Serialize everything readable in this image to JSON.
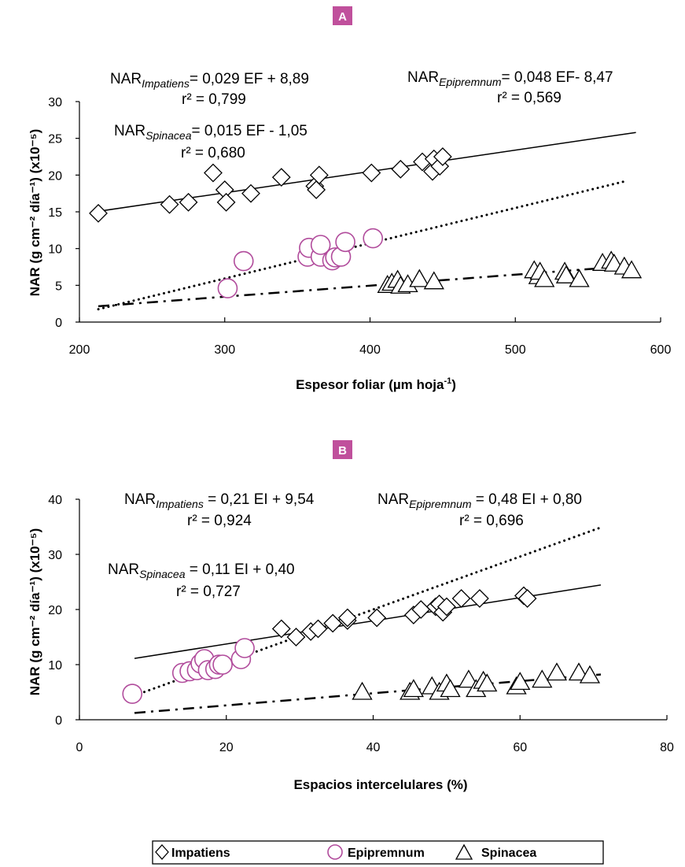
{
  "colors": {
    "panel_badge": "#C0509C",
    "epipremnum": "#B14C9C",
    "line": "#000000"
  },
  "chart_data": [
    {
      "type": "scatter",
      "panel_label": "A",
      "xlabel_main": "Espesor foliar (µm hoja",
      "xlabel_sup": "-1",
      "xlabel_end": ")",
      "ylabel": "NAR (g cm⁻² día⁻¹) (x10⁻⁵)",
      "xlim": [
        200,
        600
      ],
      "ylim": [
        0,
        30
      ],
      "xticks": [
        "200",
        "300",
        "400",
        "500",
        "600"
      ],
      "yticks": [
        "0",
        "5",
        "10",
        "15",
        "20",
        "25",
        "30"
      ],
      "equations": [
        {
          "name": "NAR",
          "sub": "Impatiens",
          "expr": "= 0,029 EF + 8,89",
          "r2": "r² = 0,799"
        },
        {
          "name": "NAR",
          "sub": "Epipremnum",
          "expr": "= 0,048 EF- 8,47",
          "r2": "r² = 0,569"
        },
        {
          "name": "NAR",
          "sub": "Spinacea",
          "expr": "= 0,015 EF - 1,05",
          "r2": "r² = 0,680"
        }
      ],
      "series": [
        {
          "name": "Impatiens",
          "marker": "diamond",
          "points": [
            [
              213,
              14.8
            ],
            [
              262,
              16
            ],
            [
              275,
              16.3
            ],
            [
              292,
              20.3
            ],
            [
              300,
              18
            ],
            [
              301,
              16.3
            ],
            [
              318,
              17.5
            ],
            [
              339,
              19.7
            ],
            [
              362,
              18.5
            ],
            [
              363,
              18
            ],
            [
              365,
              20
            ],
            [
              401,
              20.3
            ],
            [
              421,
              20.8
            ],
            [
              436,
              21.8
            ],
            [
              443,
              20.5
            ],
            [
              444,
              22.2
            ],
            [
              448,
              21.2
            ],
            [
              450,
              22.5
            ]
          ],
          "fit": {
            "style": "solid",
            "x": [
              213,
              583
            ],
            "y": [
              15.07,
              25.8
            ]
          }
        },
        {
          "name": "Epipremnum",
          "marker": "circle",
          "points": [
            [
              302,
              4.6
            ],
            [
              313,
              8.3
            ],
            [
              357,
              8.9
            ],
            [
              358,
              10.1
            ],
            [
              366,
              8.9
            ],
            [
              366,
              10.5
            ],
            [
              374,
              8.4
            ],
            [
              376,
              8.8
            ],
            [
              380,
              8.9
            ],
            [
              383,
              10.9
            ],
            [
              402,
              11.4
            ]
          ],
          "fit": {
            "style": "dotted",
            "x": [
              213,
              575
            ],
            "y": [
              1.75,
              19.13
            ]
          }
        },
        {
          "name": "Spinacea",
          "marker": "triangle",
          "points": [
            [
              412,
              5
            ],
            [
              415,
              5.3
            ],
            [
              419,
              5.7
            ],
            [
              421,
              4.9
            ],
            [
              426,
              5.1
            ],
            [
              434,
              5.8
            ],
            [
              444,
              5.5
            ],
            [
              513,
              7
            ],
            [
              516,
              6.2
            ],
            [
              517,
              6.8
            ],
            [
              520,
              5.8
            ],
            [
              534,
              6.8
            ],
            [
              535,
              6.3
            ],
            [
              544,
              5.8
            ],
            [
              560,
              8
            ],
            [
              566,
              8.3
            ],
            [
              568,
              7.9
            ],
            [
              575,
              7.5
            ],
            [
              580,
              7
            ]
          ],
          "fit": {
            "style": "dashdot",
            "x": [
              213,
              578
            ],
            "y": [
              2.15,
              7.62
            ]
          }
        }
      ]
    },
    {
      "type": "scatter",
      "panel_label": "B",
      "xlabel_main": "Espacios intercelulares (%)",
      "xlabel_sup": "",
      "xlabel_end": "",
      "ylabel": "NAR (g cm⁻² día⁻¹) (x10⁻⁵)",
      "xlim": [
        0,
        80
      ],
      "ylim": [
        0,
        40
      ],
      "xticks": [
        "0",
        "20",
        "40",
        "60",
        "80"
      ],
      "yticks": [
        "0",
        "10",
        "20",
        "30",
        "40"
      ],
      "equations": [
        {
          "name": "NAR",
          "sub": "Impatiens",
          "expr": " = 0,21 EI + 9,54",
          "r2": "r² = 0,924"
        },
        {
          "name": "NAR",
          "sub": "Epipremnum",
          "expr": " = 0,48 EI + 0,80",
          "r2": "r² = 0,696"
        },
        {
          "name": "NAR",
          "sub": "Spinacea",
          "expr": " = 0,11 EI + 0,40",
          "r2": "r² = 0,727"
        }
      ],
      "series": [
        {
          "name": "Impatiens",
          "marker": "diamond",
          "points": [
            [
              27.5,
              16.5
            ],
            [
              29.5,
              15
            ],
            [
              31.5,
              16
            ],
            [
              32.5,
              16.5
            ],
            [
              34.5,
              17.5
            ],
            [
              36.5,
              18
            ],
            [
              36.5,
              18.5
            ],
            [
              40.5,
              18.5
            ],
            [
              45.5,
              19
            ],
            [
              46.5,
              20
            ],
            [
              48.5,
              20.5
            ],
            [
              49,
              21
            ],
            [
              49.5,
              19.5
            ],
            [
              50,
              20.5
            ],
            [
              52,
              22
            ],
            [
              54.5,
              22
            ],
            [
              60.5,
              22.5
            ],
            [
              61,
              22
            ]
          ],
          "fit": {
            "style": "solid",
            "x": [
              7.5,
              71
            ],
            "y": [
              11.12,
              24.45
            ]
          }
        },
        {
          "name": "Epipremnum",
          "marker": "circle",
          "points": [
            [
              7.2,
              4.7
            ],
            [
              14,
              8.5
            ],
            [
              15,
              8.8
            ],
            [
              16,
              9
            ],
            [
              16.5,
              10.2
            ],
            [
              17,
              11
            ],
            [
              17.5,
              9
            ],
            [
              18.5,
              9.2
            ],
            [
              19,
              10
            ],
            [
              19.5,
              10
            ],
            [
              22,
              11
            ],
            [
              22.5,
              13
            ]
          ],
          "fit": {
            "style": "dotted",
            "x": [
              7.5,
              71
            ],
            "y": [
              4.4,
              34.88
            ]
          }
        },
        {
          "name": "Spinacea",
          "marker": "triangle",
          "points": [
            [
              38.5,
              5
            ],
            [
              45,
              5
            ],
            [
              45.5,
              5.5
            ],
            [
              48,
              6
            ],
            [
              49,
              5
            ],
            [
              50,
              6.5
            ],
            [
              50.5,
              5.5
            ],
            [
              53,
              7.2
            ],
            [
              54,
              5.5
            ],
            [
              55,
              7
            ],
            [
              55.5,
              6.5
            ],
            [
              59.5,
              6
            ],
            [
              60,
              6.8
            ],
            [
              63,
              7.2
            ],
            [
              65,
              8.5
            ],
            [
              68,
              8.5
            ],
            [
              69.5,
              8
            ]
          ],
          "fit": {
            "style": "dashdot",
            "x": [
              7.5,
              71
            ],
            "y": [
              1.23,
              8.21
            ]
          }
        }
      ]
    }
  ],
  "legend": {
    "items": [
      "Impatiens",
      "Epipremnum",
      "Spinacea"
    ]
  }
}
